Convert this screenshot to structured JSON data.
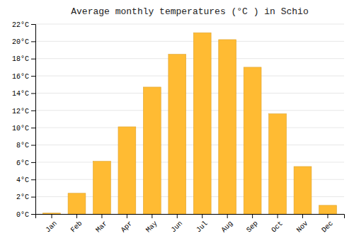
{
  "chart_data": {
    "type": "bar",
    "title": "Average monthly temperatures (°C ) in Schio",
    "categories": [
      "Jan",
      "Feb",
      "Mar",
      "Apr",
      "May",
      "Jun",
      "Jul",
      "Aug",
      "Sep",
      "Oct",
      "Nov",
      "Dec"
    ],
    "values": [
      0.1,
      2.4,
      6.1,
      10.1,
      14.7,
      18.5,
      21.0,
      20.2,
      17.0,
      11.6,
      5.5,
      1.0
    ],
    "color": "#FFBB33",
    "ylim": [
      0,
      22
    ],
    "yticks": [
      {
        "value": 0,
        "label": "0°C"
      },
      {
        "value": 2,
        "label": "2°C"
      },
      {
        "value": 4,
        "label": "4°C"
      },
      {
        "value": 6,
        "label": "6°C"
      },
      {
        "value": 8,
        "label": "8°C"
      },
      {
        "value": 10,
        "label": "10°C"
      },
      {
        "value": 12,
        "label": "12°C"
      },
      {
        "value": 14,
        "label": "14°C"
      },
      {
        "value": 16,
        "label": "16°C"
      },
      {
        "value": 18,
        "label": "18°C"
      },
      {
        "value": 20,
        "label": "20°C"
      },
      {
        "value": 22,
        "label": "22°C"
      }
    ],
    "grid": true
  }
}
